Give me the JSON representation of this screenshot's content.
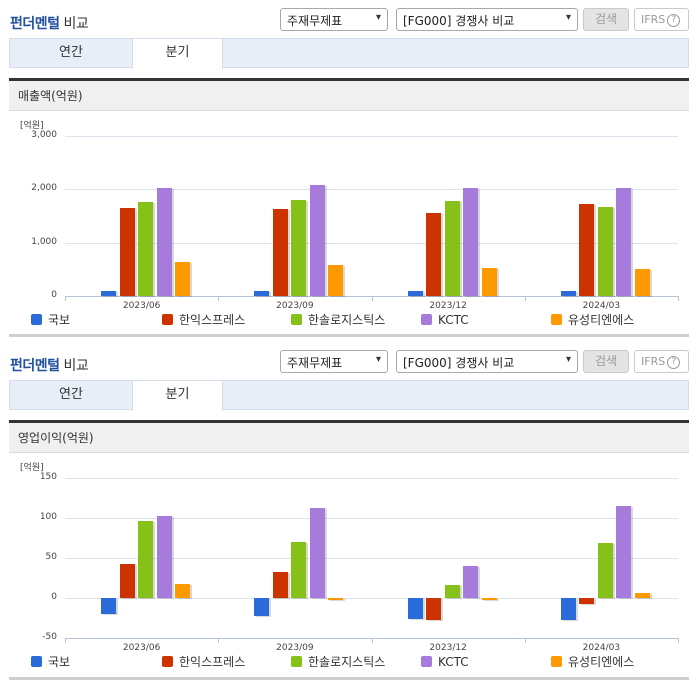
{
  "header": {
    "title_main": "펀더멘털",
    "title_sub": " 비교",
    "select_statement": "주재무제표",
    "select_compare": "[FG000] 경쟁사 비교",
    "search_button": "검색",
    "ifrs_button": "IFRS",
    "help_glyph": "?",
    "arrow_glyph": "▾"
  },
  "tabs": [
    {
      "label": "연간",
      "active": false
    },
    {
      "label": "분기",
      "active": true
    }
  ],
  "colors": {
    "국보": "#2a6bd9",
    "한익스프레스": "#cc3300",
    "한솔로지스틱스": "#86c11a",
    "KCTC": "#a77bdc",
    "유성티엔에스": "#ff9900"
  },
  "chart_data": [
    {
      "type": "bar",
      "title": "매출액(억원)",
      "ylabel": "[억원]",
      "xlabel": "",
      "ylim": [
        0,
        3000
      ],
      "yticks": [
        "3,000",
        "2,000",
        "1,000",
        "0"
      ],
      "categories": [
        "2023/06",
        "2023/09",
        "2023/12",
        "2024/03"
      ],
      "legend_position": "bottom",
      "grid": true,
      "series": [
        {
          "name": "국보",
          "values": [
            100,
            100,
            100,
            100
          ]
        },
        {
          "name": "한익스프레스",
          "values": [
            1650,
            1630,
            1560,
            1720
          ]
        },
        {
          "name": "한솔로지스틱스",
          "values": [
            1770,
            1800,
            1780,
            1670
          ]
        },
        {
          "name": "KCTC",
          "values": [
            2020,
            2080,
            2020,
            2020
          ]
        },
        {
          "name": "유성티엔에스",
          "values": [
            640,
            590,
            530,
            510
          ]
        }
      ]
    },
    {
      "type": "bar",
      "title": "영업이익(억원)",
      "ylabel": "[억원]",
      "xlabel": "",
      "ylim": [
        -50,
        150
      ],
      "yticks": [
        "150",
        "100",
        "50",
        "0",
        "-50"
      ],
      "categories": [
        "2023/06",
        "2023/09",
        "2023/12",
        "2024/03"
      ],
      "legend_position": "bottom",
      "grid": true,
      "series": [
        {
          "name": "국보",
          "values": [
            -20,
            -23,
            -26,
            -28
          ]
        },
        {
          "name": "한익스프레스",
          "values": [
            42,
            32,
            -28,
            -8
          ]
        },
        {
          "name": "한솔로지스틱스",
          "values": [
            96,
            70,
            16,
            69
          ]
        },
        {
          "name": "KCTC",
          "values": [
            103,
            112,
            40,
            115
          ]
        },
        {
          "name": "유성티엔에스",
          "values": [
            18,
            -3,
            -2,
            6
          ]
        }
      ]
    }
  ]
}
